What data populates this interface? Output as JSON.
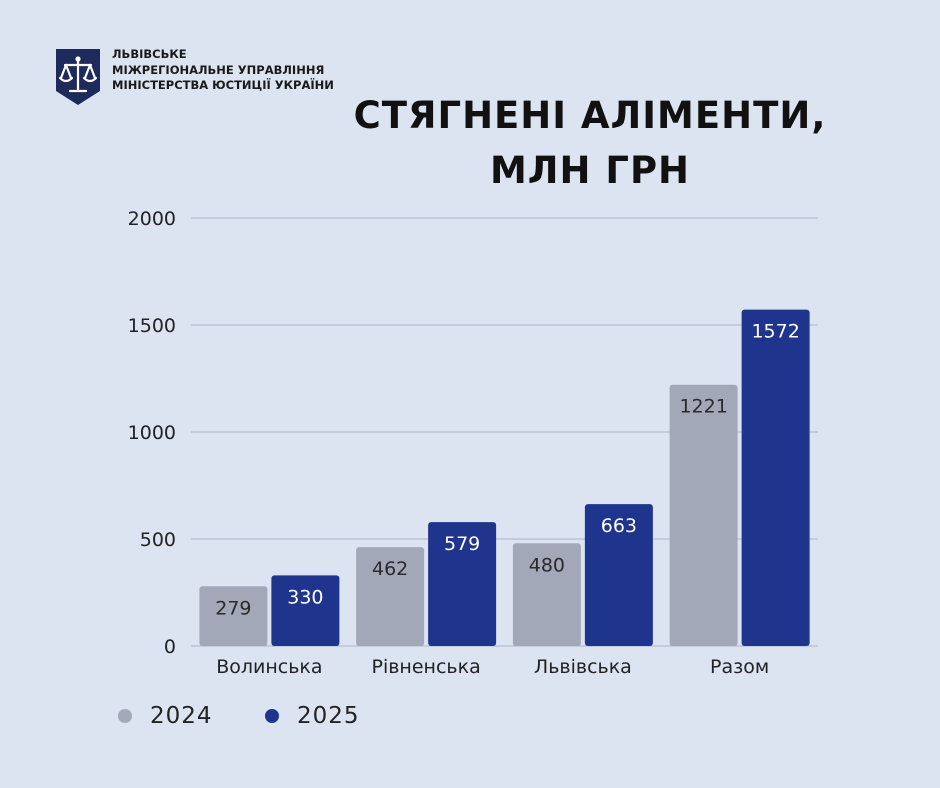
{
  "organization": {
    "lines": [
      "ЛЬВІВСЬКЕ",
      "МІЖРЕГІОНАЛЬНЕ УПРАВЛІННЯ",
      "МІНІСТЕРСТВА ЮСТИЦІЇ УКРАЇНИ"
    ]
  },
  "chart_data": {
    "type": "bar",
    "title_lines": [
      "СТЯГНЕНІ АЛІМЕНТИ,",
      "МЛН ГРН"
    ],
    "categories": [
      "Волинська",
      "Рівненська",
      "Львівська",
      "Разом"
    ],
    "series": [
      {
        "name": "2024",
        "values": [
          279,
          462,
          480,
          1221
        ],
        "color": "#a3a8b8"
      },
      {
        "name": "2025",
        "values": [
          330,
          579,
          663,
          1572
        ],
        "color": "#1f358d"
      }
    ],
    "ylim": [
      0,
      2000
    ],
    "yticks": [
      "0",
      "500",
      "1000",
      "1500",
      "2000"
    ],
    "grid": true,
    "legend_position": "bottom-left"
  }
}
